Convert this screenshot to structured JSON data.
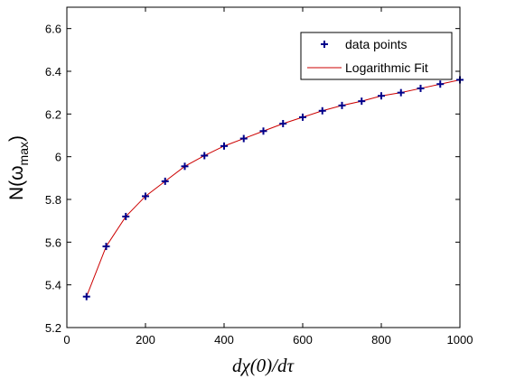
{
  "chart_data": {
    "type": "scatter",
    "title": "",
    "xlabel": "dχ(0)/dτ",
    "ylabel_main": "N(ω",
    "ylabel_sub": "max",
    "ylabel_end": ")",
    "xlim": [
      0,
      1000
    ],
    "ylim": [
      5.2,
      6.7
    ],
    "xticks": [
      0,
      200,
      400,
      600,
      800,
      1000
    ],
    "xtick_labels": [
      "0",
      "200",
      "400",
      "600",
      "800",
      "1000"
    ],
    "yticks": [
      5.2,
      5.4,
      5.6,
      5.8,
      6.0,
      6.2,
      6.4,
      6.6
    ],
    "ytick_labels": [
      "5.2",
      "5.4",
      "5.6",
      "5.8",
      "6",
      "6.2",
      "6.4",
      "6.6"
    ],
    "grid": false,
    "legend_position": "top-right",
    "series": [
      {
        "name": "data points",
        "marker": "+",
        "color": "#00008b",
        "x": [
          50,
          100,
          150,
          200,
          250,
          300,
          350,
          400,
          450,
          500,
          550,
          600,
          650,
          700,
          750,
          800,
          850,
          900,
          950,
          1000
        ],
        "y": [
          5.345,
          5.58,
          5.72,
          5.815,
          5.885,
          5.955,
          6.005,
          6.05,
          6.085,
          6.12,
          6.155,
          6.185,
          6.215,
          6.24,
          6.26,
          6.285,
          6.3,
          6.32,
          6.34,
          6.36
        ]
      },
      {
        "name": "Logarithmic Fit",
        "marker": "line",
        "color": "#cc0000",
        "x": [
          50,
          100,
          150,
          200,
          250,
          300,
          350,
          400,
          450,
          500,
          550,
          600,
          650,
          700,
          750,
          800,
          850,
          900,
          950,
          1000
        ],
        "y": [
          5.345,
          5.58,
          5.72,
          5.815,
          5.885,
          5.955,
          6.005,
          6.05,
          6.085,
          6.12,
          6.155,
          6.185,
          6.215,
          6.24,
          6.26,
          6.285,
          6.3,
          6.32,
          6.34,
          6.36
        ]
      }
    ]
  }
}
